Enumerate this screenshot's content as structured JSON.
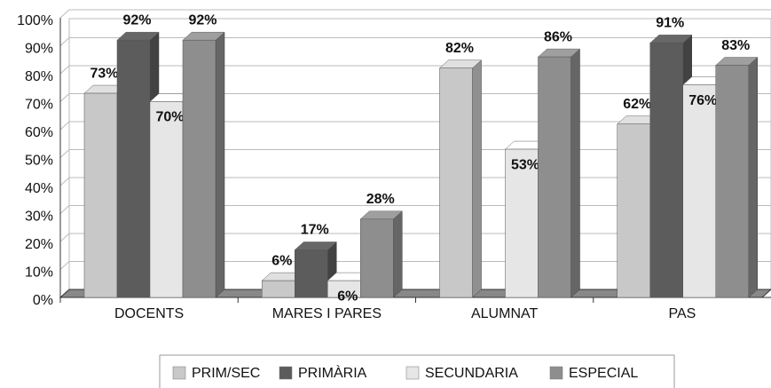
{
  "chart_data": {
    "type": "bar3d",
    "categories": [
      "DOCENTS",
      "MARES I PARES",
      "ALUMNAT",
      "PAS"
    ],
    "series": [
      {
        "name": "PRIM/SEC",
        "color": "#c8c8c8",
        "values": [
          73,
          6,
          82,
          62
        ],
        "value_labels": [
          "73%",
          "6%",
          "82%",
          "62%"
        ]
      },
      {
        "name": "PRIMÀRIA",
        "color": "#5c5c5c",
        "values": [
          92,
          17,
          null,
          91
        ],
        "value_labels": [
          "92%",
          "17%",
          null,
          "91%"
        ]
      },
      {
        "name": "SECUNDARIA",
        "color": "#e6e6e6",
        "values": [
          70,
          6,
          53,
          76
        ],
        "value_labels": [
          "70%",
          "6%",
          "53%",
          "76%"
        ]
      },
      {
        "name": "ESPECIAL",
        "color": "#8e8e8e",
        "values": [
          92,
          28,
          86,
          83
        ],
        "value_labels": [
          "92%",
          "28%",
          "86%",
          "83%"
        ]
      }
    ],
    "ylim": [
      0,
      100
    ],
    "yticks": [
      {
        "value": 0,
        "label": "0%"
      },
      {
        "value": 10,
        "label": "10%"
      },
      {
        "value": 20,
        "label": "20%"
      },
      {
        "value": 30,
        "label": "30%"
      },
      {
        "value": 40,
        "label": "40%"
      },
      {
        "value": 50,
        "label": "50%"
      },
      {
        "value": 60,
        "label": "60%"
      },
      {
        "value": 70,
        "label": "70%"
      },
      {
        "value": 80,
        "label": "80%"
      },
      {
        "value": 90,
        "label": "90%"
      },
      {
        "value": 100,
        "label": "100%"
      }
    ],
    "grid": true,
    "legend": "bottom"
  }
}
